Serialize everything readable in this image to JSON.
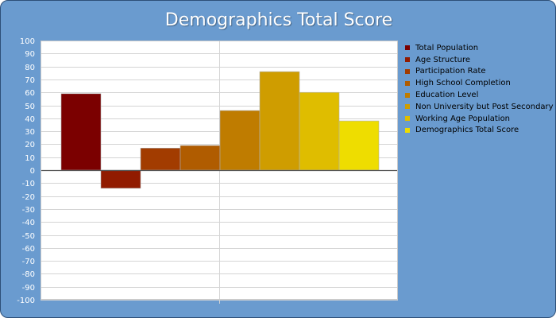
{
  "chart_data": {
    "type": "bar",
    "title": "Demographics Total Score",
    "xlabel": "",
    "ylabel": "",
    "ylim": [
      -100,
      100
    ],
    "ytick_step": 10,
    "grid": true,
    "legend_position": "right",
    "categories": [
      "Total Population",
      "Age Structure",
      "Participation Rate",
      "High School Completion",
      "Education Level",
      "Non University but Post Secondary",
      "Working Age Population",
      "Demographics Total Score"
    ],
    "values": [
      59,
      -14,
      17,
      19,
      46,
      76,
      60,
      38
    ],
    "colors": [
      "#7b0000",
      "#911b00",
      "#a23c00",
      "#b05c00",
      "#bf7c00",
      "#cf9d00",
      "#dfbd00",
      "#eedd00"
    ],
    "background_color": "#6a9bcf",
    "plot_background": "#ffffff"
  }
}
